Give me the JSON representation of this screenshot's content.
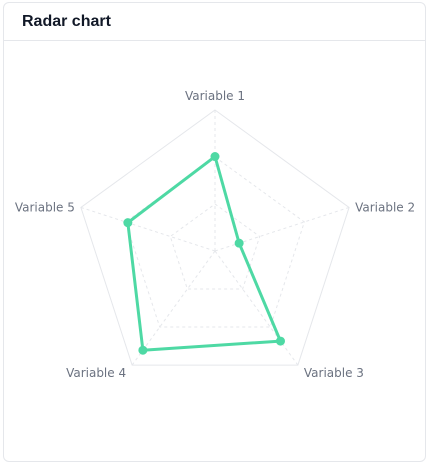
{
  "card": {
    "title": "Radar chart"
  },
  "chart_data": {
    "type": "radar",
    "title": "Radar chart",
    "axes": [
      "Variable 1",
      "Variable 2",
      "Variable 3",
      "Variable 4",
      "Variable 5"
    ],
    "series": [
      {
        "values": [
          0.67,
          0.18,
          0.79,
          0.87,
          0.65
        ],
        "color": "#4ed9a4"
      }
    ],
    "range": [
      0,
      1
    ],
    "rings": 3,
    "grid_color_outer": "#e5e7eb",
    "grid_color_inner": "#e5e7eb"
  }
}
